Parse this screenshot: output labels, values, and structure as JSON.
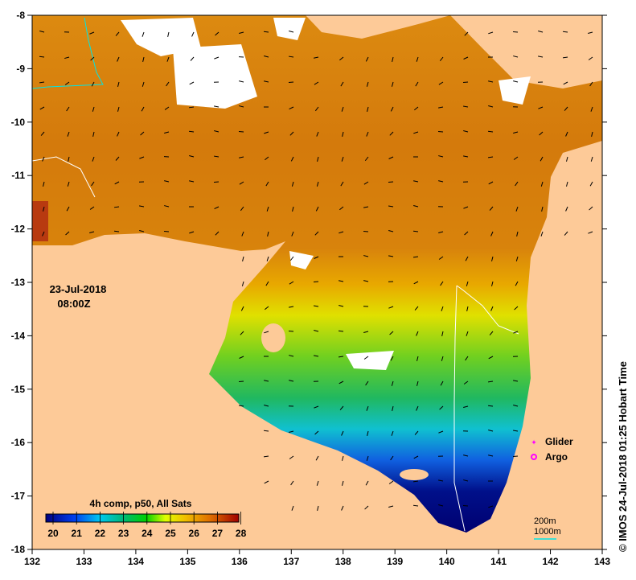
{
  "map": {
    "x_axis": {
      "ticks": [
        "132",
        "133",
        "134",
        "135",
        "136",
        "137",
        "138",
        "139",
        "140",
        "141",
        "142",
        "143"
      ],
      "range": [
        132,
        143
      ]
    },
    "y_axis": {
      "ticks": [
        "-8",
        "-9",
        "-10",
        "-11",
        "-12",
        "-13",
        "-14",
        "-15",
        "-16",
        "-17",
        "-18"
      ],
      "range": [
        -18,
        -8
      ]
    },
    "date_label": "23-Jul-2018",
    "time_label": "08:00Z",
    "colorbar": {
      "title": "4h comp, p50, All Sats",
      "ticks": [
        "20",
        "21",
        "22",
        "23",
        "24",
        "25",
        "26",
        "27",
        "28"
      ],
      "range": [
        20,
        28
      ]
    },
    "legend": {
      "glider": "Glider",
      "argo": "Argo",
      "glider_color": "#ff00ff",
      "argo_color": "#ff00ff"
    },
    "isobaths": {
      "shallow": "200m",
      "deep": "1000m",
      "deep_color": "#00e5e5"
    },
    "credit": "© IMOS 24-Jul-2018 01:25 Hobart Time",
    "colors": {
      "land": "#fdca98",
      "cloud": "#ffffff"
    }
  }
}
